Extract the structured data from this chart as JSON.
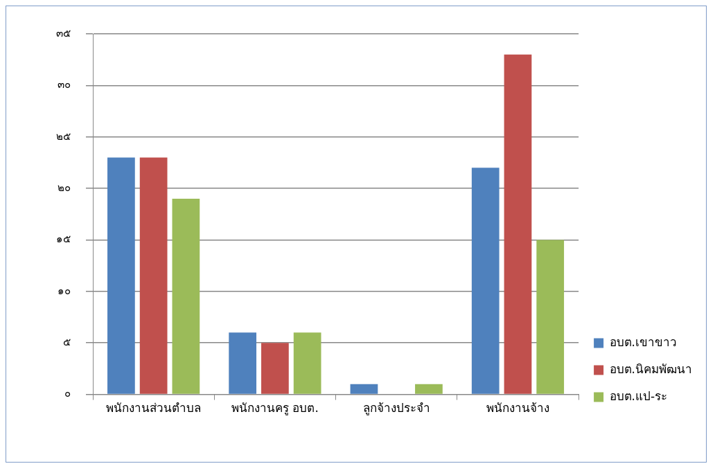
{
  "chart_data": {
    "type": "bar",
    "categories": [
      "พนักงานส่วนตำบล",
      "พนักงานครู อบต.",
      "ลูกจ้างประจำ",
      "พนักงานจ้าง"
    ],
    "series": [
      {
        "name": "อบต.เขาขาว",
        "color": "#4f81bd",
        "values": [
          23,
          6,
          1,
          22
        ]
      },
      {
        "name": "อบต.นิคมพัฒนา",
        "color": "#c0504d",
        "values": [
          23,
          5,
          0,
          33
        ]
      },
      {
        "name": "อบต.แป-ระ",
        "color": "#9bbb59",
        "values": [
          19,
          6,
          1,
          15
        ]
      }
    ],
    "ylim": [
      0,
      35
    ],
    "yticks": [
      {
        "value": 0,
        "label": "๐"
      },
      {
        "value": 5,
        "label": "๕"
      },
      {
        "value": 10,
        "label": "๑๐"
      },
      {
        "value": 15,
        "label": "๑๕"
      },
      {
        "value": 20,
        "label": "๒๐"
      },
      {
        "value": 25,
        "label": "๒๕"
      },
      {
        "value": 30,
        "label": "๓๐"
      },
      {
        "value": 35,
        "label": "๓๕"
      }
    ],
    "grid": "y",
    "legend": "right"
  }
}
